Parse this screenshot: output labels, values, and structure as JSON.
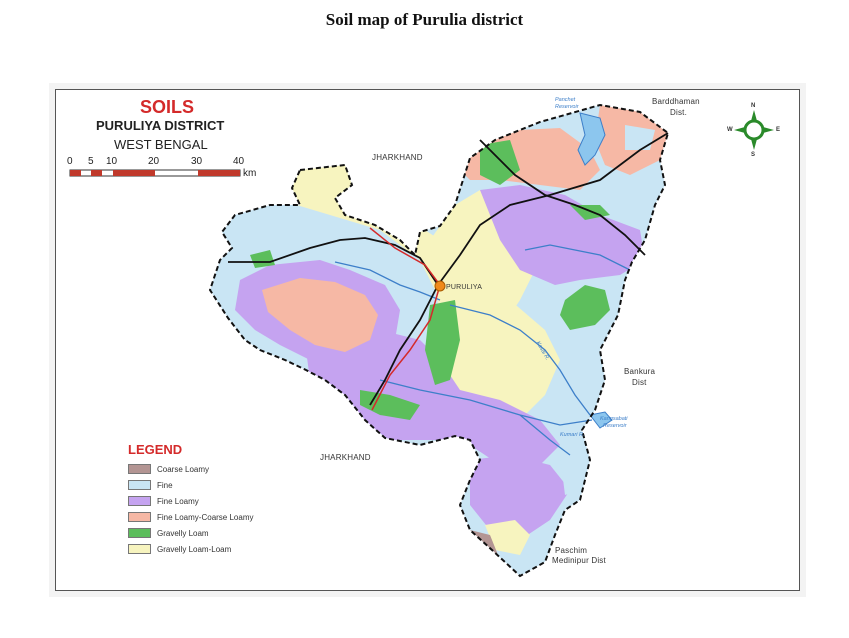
{
  "page_title": "Soil map of Purulia district",
  "map": {
    "title": "SOILS",
    "district": "PURULIYA DISTRICT",
    "state": "WEST BENGAL",
    "scale": {
      "ticks": [
        "0",
        "5",
        "10",
        "20",
        "30",
        "40"
      ],
      "unit": "km"
    },
    "compass": {
      "north": "N",
      "south": "S",
      "east": "E",
      "west": "W"
    },
    "places": {
      "jharkhand_north": "JHARKHAND",
      "jharkhand_south": "JHARKHAND",
      "bardhaman": "Barddhaman",
      "bardhaman_dist": "Dist.",
      "bankura": "Bankura",
      "bankura_dist": "Dist",
      "paschim": "Paschim",
      "medinipur": "Medinipur Dist",
      "puruliya": "PURULIYA"
    },
    "rivers": {
      "panchet": "Panchet",
      "panchet_res": "Reservoir",
      "kangsabati": "Kangsabati",
      "kangsabati_res": "Reservoir",
      "kasai": "Kasai R.",
      "kumari": "Kumari R."
    }
  },
  "legend": {
    "title": "LEGEND",
    "items": [
      {
        "label": "Coarse Loamy",
        "color": "#b39593"
      },
      {
        "label": "Fine",
        "color": "#c9e5f4"
      },
      {
        "label": "Fine Loamy",
        "color": "#c5a3f0"
      },
      {
        "label": "Fine Loamy-Coarse Loamy",
        "color": "#f6b8a5"
      },
      {
        "label": "Gravelly Loam",
        "color": "#5cbe5c"
      },
      {
        "label": "Gravelly Loam-Loam",
        "color": "#f7f4bf"
      }
    ]
  }
}
